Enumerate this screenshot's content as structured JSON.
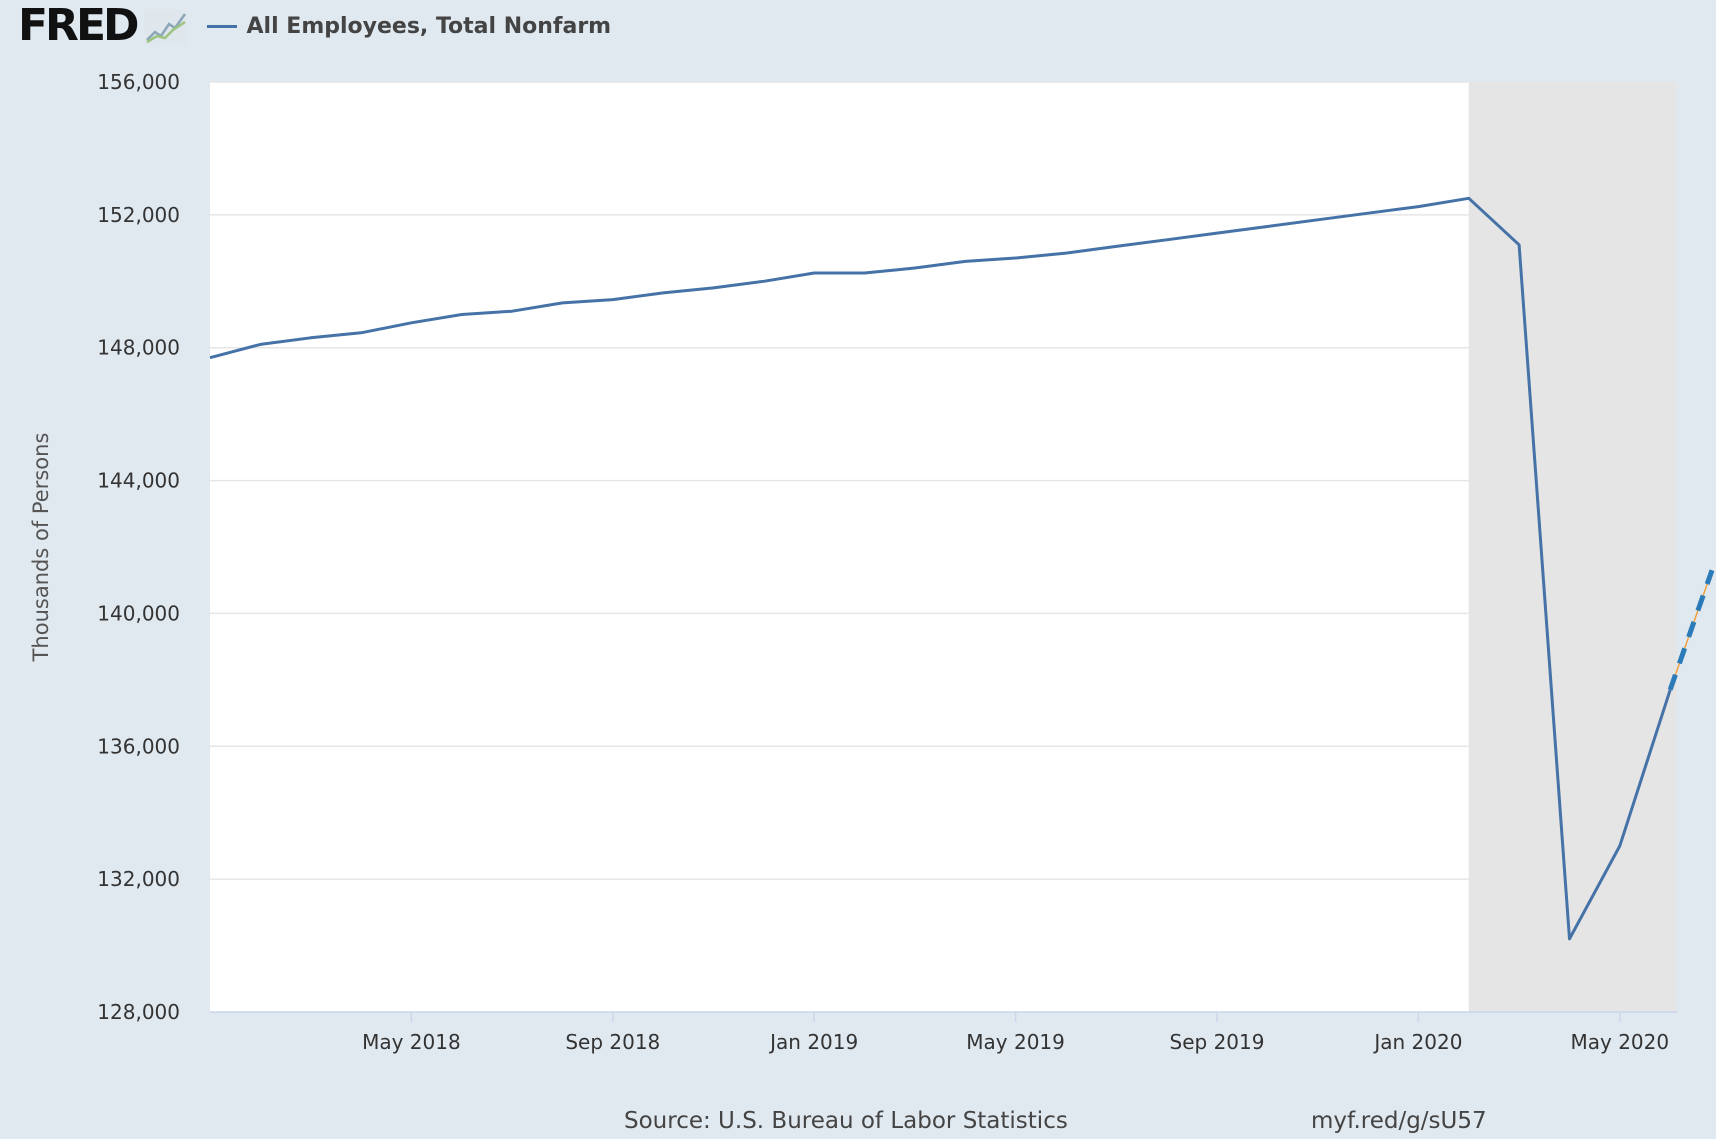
{
  "header": {
    "logo_text": "FRED",
    "logo_icon": "trend-chart-icon",
    "legend_label": "All Employees, Total Nonfarm"
  },
  "footer": {
    "source": "Source: U.S. Bureau of Labor Statistics",
    "shortlink": "myf.red/g/sU57"
  },
  "colors": {
    "line": "#4572a7",
    "recession_band": "#e5e5e5",
    "background": "#e1e9f0",
    "plot_background": "#ffffff",
    "grid": "#e6e6e6",
    "dashed_extension": "#2b7bb9",
    "dashed_extension_accent": "#f0a040"
  },
  "chart_data": {
    "type": "line",
    "title": "All Employees, Total Nonfarm",
    "xlabel": "",
    "ylabel": "Thousands of Persons",
    "ylim": [
      128000,
      156000
    ],
    "yticks": [
      128000,
      132000,
      136000,
      140000,
      144000,
      148000,
      152000,
      156000
    ],
    "ytick_labels": [
      "128,000",
      "132,000",
      "136,000",
      "140,000",
      "144,000",
      "148,000",
      "152,000",
      "156,000"
    ],
    "xlim": [
      "2018-01",
      "2020-06"
    ],
    "xticks": [
      "2018-05",
      "2018-09",
      "2019-01",
      "2019-05",
      "2019-09",
      "2020-01",
      "2020-05"
    ],
    "xtick_labels": [
      "May 2018",
      "Sep 2018",
      "Jan 2019",
      "May 2019",
      "Sep 2019",
      "Jan 2020",
      "May 2020"
    ],
    "grid": true,
    "legend": "top-left",
    "recession": {
      "start": "2020-02",
      "end": "2020-06"
    },
    "series": [
      {
        "name": "All Employees, Total Nonfarm",
        "x": [
          "2018-01",
          "2018-02",
          "2018-03",
          "2018-04",
          "2018-05",
          "2018-06",
          "2018-07",
          "2018-08",
          "2018-09",
          "2018-10",
          "2018-11",
          "2018-12",
          "2019-01",
          "2019-02",
          "2019-03",
          "2019-04",
          "2019-05",
          "2019-06",
          "2019-07",
          "2019-08",
          "2019-09",
          "2019-10",
          "2019-11",
          "2019-12",
          "2020-01",
          "2020-02",
          "2020-03",
          "2020-04",
          "2020-05",
          "2020-06"
        ],
        "y": [
          147700,
          148100,
          148300,
          148450,
          148750,
          149000,
          149100,
          149350,
          149450,
          149650,
          149800,
          150000,
          150250,
          150250,
          150400,
          150600,
          150700,
          150850,
          151050,
          151250,
          151450,
          151650,
          151850,
          152050,
          152250,
          152500,
          151100,
          130200,
          133000,
          137700
        ]
      }
    ],
    "extension": {
      "style": "dashed",
      "x": [
        "2020-06",
        "2020-07"
      ],
      "y": [
        137700,
        141300
      ]
    }
  }
}
